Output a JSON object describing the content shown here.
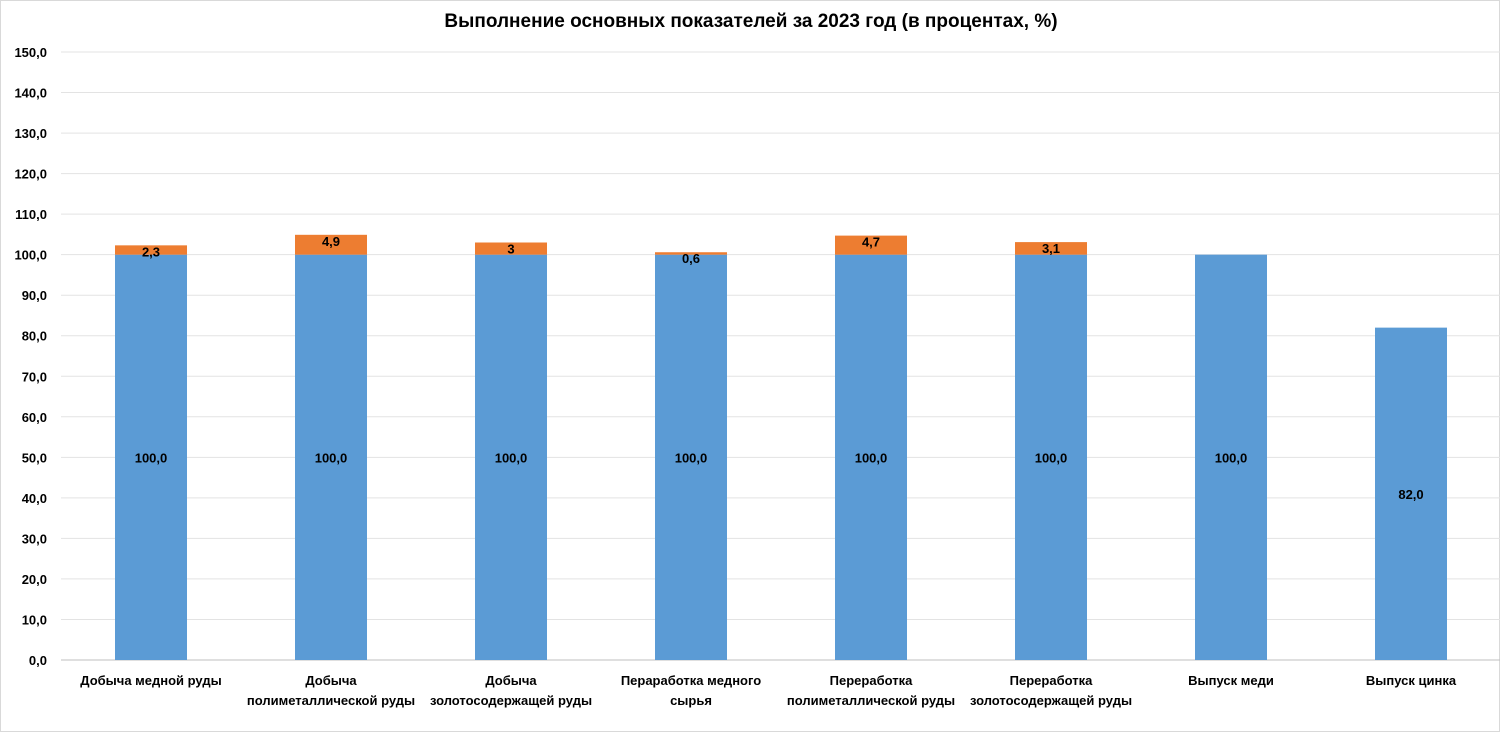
{
  "chart_data": {
    "type": "bar",
    "stacked": true,
    "title": "Выполнение основных показателей за 2023 год (в процентах, %)",
    "categories": [
      [
        "Добыча медной руды"
      ],
      [
        "Добыча",
        "полиметаллической руды"
      ],
      [
        "Добыча",
        "золотосодержащей руды"
      ],
      [
        "Пераработка медного",
        "сырья"
      ],
      [
        "Переработка",
        "полиметаллической руды"
      ],
      [
        "Переработка",
        "золотосодержащей руды"
      ],
      [
        "Выпуск меди"
      ],
      [
        "Выпуск цинка"
      ]
    ],
    "series": [
      {
        "color": "#5B9BD5",
        "values": [
          100.0,
          100.0,
          100.0,
          100.0,
          100.0,
          100.0,
          100.0,
          82.0
        ],
        "labels": [
          "100,0",
          "100,0",
          "100,0",
          "100,0",
          "100,0",
          "100,0",
          "100,0",
          "82,0"
        ]
      },
      {
        "color": "#ED7D31",
        "values": [
          2.3,
          4.9,
          3,
          0.6,
          4.7,
          3.1,
          0,
          0
        ],
        "labels": [
          "2,3",
          "4,9",
          "3",
          "0,6",
          "4,7",
          "3,1",
          "",
          ""
        ]
      }
    ],
    "ylim": [
      0,
      150
    ],
    "yticks": [
      "0,0",
      "10,0",
      "20,0",
      "30,0",
      "40,0",
      "50,0",
      "60,0",
      "70,0",
      "80,0",
      "90,0",
      "100,0",
      "110,0",
      "120,0",
      "130,0",
      "140,0",
      "150,0"
    ],
    "grid": true,
    "legend": "none",
    "xlabel": "",
    "ylabel": ""
  }
}
